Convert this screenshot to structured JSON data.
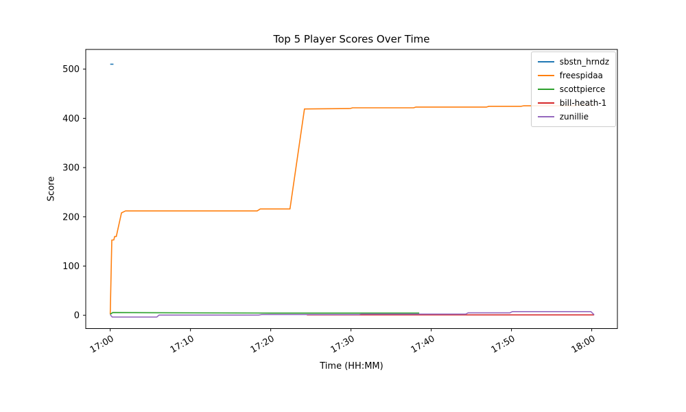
{
  "chart_data": {
    "type": "line",
    "title": "Top 5 Player Scores Over Time",
    "xlabel": "Time (HH:MM)",
    "ylabel": "Score",
    "x_tick_labels": [
      "17:00",
      "17:10",
      "17:20",
      "17:30",
      "17:40",
      "17:50",
      "18:00"
    ],
    "x_tick_values": [
      0,
      10,
      20,
      30,
      40,
      50,
      60
    ],
    "y_tick_values": [
      0,
      100,
      200,
      300,
      400,
      500
    ],
    "xlim": [
      -3.05,
      63.2
    ],
    "ylim": [
      -27,
      540
    ],
    "grid": false,
    "legend": {
      "position": "upper right"
    },
    "axis_color": "#000000",
    "background_color": "#ffffff",
    "series": [
      {
        "name": "sbstn_hrndz",
        "color": "#1f77b4",
        "points": [
          [
            0,
            510
          ],
          [
            0.4,
            510
          ]
        ]
      },
      {
        "name": "freespidaa",
        "color": "#ff7f0e",
        "points": [
          [
            0,
            2
          ],
          [
            0.2,
            153
          ],
          [
            0.45,
            153
          ],
          [
            0.55,
            160
          ],
          [
            0.75,
            160
          ],
          [
            1.4,
            208
          ],
          [
            1.9,
            212
          ],
          [
            18.3,
            212
          ],
          [
            18.7,
            216
          ],
          [
            22.4,
            216
          ],
          [
            24.2,
            419
          ],
          [
            29.9,
            420
          ],
          [
            30.2,
            421.5
          ],
          [
            37.8,
            421.5
          ],
          [
            38.1,
            423
          ],
          [
            46.9,
            423
          ],
          [
            47.2,
            424.5
          ],
          [
            51.2,
            424.5
          ],
          [
            51.5,
            425.5
          ],
          [
            57.9,
            425.5
          ],
          [
            58.2,
            427
          ],
          [
            60.3,
            427
          ]
        ]
      },
      {
        "name": "scottpierce",
        "color": "#2ca02c",
        "points": [
          [
            0,
            2
          ],
          [
            0.3,
            5.5
          ],
          [
            8,
            5
          ],
          [
            20,
            4.5
          ],
          [
            38.5,
            4.5
          ]
        ]
      },
      {
        "name": "bill-heath-1",
        "color": "#d62728",
        "points": [
          [
            24.5,
            0.8
          ],
          [
            60.3,
            0.8
          ]
        ]
      },
      {
        "name": "zunillie",
        "color": "#9467bd",
        "points": [
          [
            0,
            1
          ],
          [
            0.25,
            -3.5
          ],
          [
            5.8,
            -3.5
          ],
          [
            6.1,
            0.5
          ],
          [
            18.5,
            0.5
          ],
          [
            18.9,
            1.5
          ],
          [
            31,
            1.5
          ],
          [
            31.3,
            2.5
          ],
          [
            44.3,
            2.5
          ],
          [
            44.6,
            5
          ],
          [
            49.8,
            5
          ],
          [
            50.1,
            7.5
          ],
          [
            59.9,
            7.5
          ],
          [
            60.3,
            1
          ]
        ]
      }
    ]
  }
}
